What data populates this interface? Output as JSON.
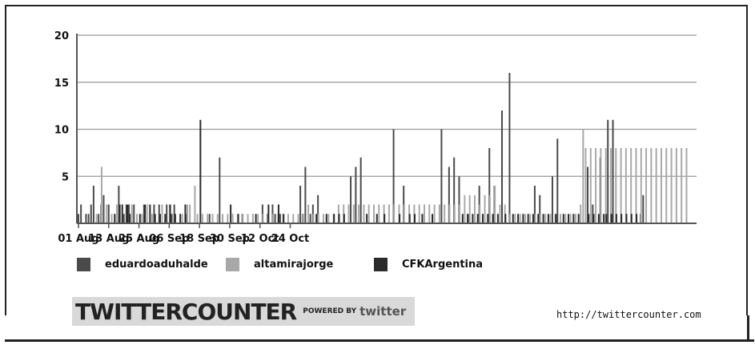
{
  "chart_data": {
    "type": "bar",
    "title": "",
    "xlabel": "",
    "ylabel": "",
    "ylim": [
      0,
      20
    ],
    "yticks": [
      20,
      15,
      10,
      5
    ],
    "xtick_labels": [
      "01 Aug",
      "13 Aug",
      "25 Aug",
      "06 Sep",
      "18 Sep",
      "30 Sep",
      "12 Oct",
      "24 Oct"
    ],
    "x_start": "01 Aug",
    "tick_interval_days": 12,
    "grid": true,
    "legend_position": "bottom",
    "series": [
      {
        "name": "eduardoaduhalde",
        "color": "#4a4a4a",
        "points": [
          [
            0,
            1
          ],
          [
            1,
            2
          ],
          [
            3,
            1
          ],
          [
            4,
            1
          ],
          [
            5,
            2
          ],
          [
            6,
            4
          ],
          [
            8,
            1
          ],
          [
            9,
            2
          ],
          [
            10,
            3
          ],
          [
            12,
            2
          ],
          [
            16,
            4
          ],
          [
            18,
            1
          ],
          [
            19,
            2
          ],
          [
            20,
            2
          ],
          [
            22,
            2
          ],
          [
            26,
            2
          ],
          [
            30,
            2
          ],
          [
            32,
            2
          ],
          [
            35,
            2
          ],
          [
            37,
            1
          ],
          [
            38,
            2
          ],
          [
            43,
            1
          ],
          [
            52,
            1
          ],
          [
            56,
            7
          ],
          [
            65,
            1
          ],
          [
            73,
            2
          ],
          [
            75,
            1
          ],
          [
            77,
            2
          ],
          [
            78,
            1
          ],
          [
            80,
            1
          ],
          [
            88,
            4
          ],
          [
            89,
            1
          ],
          [
            90,
            6
          ],
          [
            92,
            1
          ],
          [
            93,
            2
          ],
          [
            95,
            3
          ],
          [
            108,
            5
          ],
          [
            110,
            6
          ],
          [
            112,
            7
          ],
          [
            125,
            10
          ],
          [
            129,
            4
          ],
          [
            144,
            10
          ],
          [
            147,
            6
          ],
          [
            149,
            7
          ],
          [
            151,
            5
          ],
          [
            155,
            1
          ],
          [
            159,
            4
          ],
          [
            163,
            8
          ],
          [
            165,
            4
          ],
          [
            168,
            12
          ],
          [
            171,
            16
          ],
          [
            181,
            4
          ],
          [
            183,
            3
          ],
          [
            188,
            5
          ],
          [
            190,
            9
          ],
          [
            202,
            6
          ],
          [
            204,
            2
          ],
          [
            207,
            7
          ],
          [
            210,
            11
          ],
          [
            212,
            11
          ],
          [
            223,
            1
          ],
          [
            224,
            3
          ]
        ]
      },
      {
        "name": "altamirajorge",
        "color": "#a8a8a8",
        "points": [
          [
            7,
            1
          ],
          [
            9,
            6
          ],
          [
            11,
            2
          ],
          [
            13,
            1
          ],
          [
            15,
            2
          ],
          [
            21,
            2
          ],
          [
            23,
            1
          ],
          [
            25,
            1
          ],
          [
            27,
            2
          ],
          [
            29,
            1
          ],
          [
            33,
            2
          ],
          [
            36,
            2
          ],
          [
            41,
            1
          ],
          [
            43,
            2
          ],
          [
            44,
            2
          ],
          [
            46,
            4
          ],
          [
            47,
            1
          ],
          [
            49,
            1
          ],
          [
            51,
            1
          ],
          [
            53,
            1
          ],
          [
            55,
            1
          ],
          [
            57,
            1
          ],
          [
            59,
            1
          ],
          [
            61,
            1
          ],
          [
            63,
            1
          ],
          [
            65,
            1
          ],
          [
            67,
            1
          ],
          [
            69,
            1
          ],
          [
            71,
            1
          ],
          [
            73,
            1
          ],
          [
            75,
            1
          ],
          [
            77,
            1
          ],
          [
            79,
            1
          ],
          [
            81,
            1
          ],
          [
            83,
            1
          ],
          [
            85,
            1
          ],
          [
            87,
            1
          ],
          [
            89,
            1
          ],
          [
            91,
            2
          ],
          [
            93,
            1
          ],
          [
            95,
            1
          ],
          [
            97,
            1
          ],
          [
            99,
            1
          ],
          [
            101,
            1
          ],
          [
            103,
            2
          ],
          [
            105,
            2
          ],
          [
            107,
            2
          ],
          [
            109,
            2
          ],
          [
            111,
            2
          ],
          [
            113,
            2
          ],
          [
            115,
            2
          ],
          [
            117,
            2
          ],
          [
            119,
            2
          ],
          [
            121,
            2
          ],
          [
            123,
            2
          ],
          [
            125,
            2
          ],
          [
            127,
            2
          ],
          [
            129,
            2
          ],
          [
            131,
            2
          ],
          [
            133,
            2
          ],
          [
            135,
            2
          ],
          [
            137,
            2
          ],
          [
            139,
            2
          ],
          [
            141,
            2
          ],
          [
            143,
            2
          ],
          [
            145,
            2
          ],
          [
            147,
            2
          ],
          [
            149,
            2
          ],
          [
            151,
            2
          ],
          [
            153,
            3
          ],
          [
            155,
            3
          ],
          [
            157,
            3
          ],
          [
            159,
            2
          ],
          [
            161,
            3
          ],
          [
            163,
            3
          ],
          [
            165,
            4
          ],
          [
            167,
            2
          ],
          [
            169,
            2
          ],
          [
            171,
            1
          ],
          [
            173,
            1
          ],
          [
            175,
            1
          ],
          [
            177,
            1
          ],
          [
            179,
            1
          ],
          [
            181,
            1
          ],
          [
            183,
            1
          ],
          [
            185,
            1
          ],
          [
            187,
            1
          ],
          [
            189,
            1
          ],
          [
            191,
            1
          ],
          [
            193,
            1
          ],
          [
            195,
            1
          ],
          [
            197,
            1
          ],
          [
            199,
            2
          ],
          [
            200,
            10
          ],
          [
            201,
            8
          ],
          [
            203,
            8
          ],
          [
            205,
            8
          ],
          [
            207,
            8
          ],
          [
            209,
            8
          ],
          [
            211,
            8
          ],
          [
            213,
            8
          ],
          [
            215,
            8
          ],
          [
            217,
            8
          ],
          [
            219,
            8
          ],
          [
            221,
            8
          ],
          [
            223,
            8
          ],
          [
            225,
            8
          ],
          [
            227,
            8
          ],
          [
            229,
            8
          ],
          [
            231,
            8
          ],
          [
            233,
            8
          ],
          [
            235,
            8
          ],
          [
            237,
            8
          ],
          [
            239,
            8
          ],
          [
            241,
            8
          ]
        ]
      },
      {
        "name": "CFKArgentina",
        "color": "#2a2a2a",
        "points": [
          [
            14,
            1
          ],
          [
            16,
            2
          ],
          [
            17,
            2
          ],
          [
            19,
            2
          ],
          [
            20,
            1
          ],
          [
            24,
            1
          ],
          [
            26,
            2
          ],
          [
            28,
            2
          ],
          [
            30,
            1
          ],
          [
            32,
            1
          ],
          [
            34,
            1
          ],
          [
            36,
            2
          ],
          [
            38,
            1
          ],
          [
            40,
            1
          ],
          [
            42,
            2
          ],
          [
            48,
            11
          ],
          [
            60,
            2
          ],
          [
            63,
            1
          ],
          [
            70,
            1
          ],
          [
            75,
            2
          ],
          [
            79,
            2
          ],
          [
            81,
            1
          ],
          [
            94,
            1
          ],
          [
            98,
            1
          ],
          [
            101,
            1
          ],
          [
            103,
            1
          ],
          [
            105,
            1
          ],
          [
            114,
            1
          ],
          [
            118,
            1
          ],
          [
            121,
            1
          ],
          [
            127,
            1
          ],
          [
            131,
            1
          ],
          [
            133,
            1
          ],
          [
            136,
            1
          ],
          [
            140,
            1
          ],
          [
            152,
            1
          ],
          [
            154,
            1
          ],
          [
            156,
            1
          ],
          [
            158,
            1
          ],
          [
            160,
            1
          ],
          [
            162,
            1
          ],
          [
            164,
            1
          ],
          [
            166,
            1
          ],
          [
            169,
            1
          ],
          [
            172,
            1
          ],
          [
            174,
            1
          ],
          [
            176,
            1
          ],
          [
            178,
            1
          ],
          [
            180,
            1
          ],
          [
            182,
            1
          ],
          [
            184,
            1
          ],
          [
            186,
            1
          ],
          [
            189,
            1
          ],
          [
            192,
            1
          ],
          [
            194,
            1
          ],
          [
            196,
            1
          ],
          [
            198,
            1
          ],
          [
            202,
            1
          ],
          [
            204,
            1
          ],
          [
            206,
            1
          ],
          [
            208,
            1
          ],
          [
            209,
            1
          ],
          [
            211,
            1
          ],
          [
            213,
            1
          ],
          [
            215,
            1
          ],
          [
            217,
            1
          ],
          [
            219,
            1
          ],
          [
            221,
            1
          ]
        ]
      }
    ]
  },
  "legend": {
    "items": [
      {
        "label": "eduardoaduhalde",
        "color": "#4a4a4a"
      },
      {
        "label": "altamirajorge",
        "color": "#a8a8a8"
      },
      {
        "label": "CFKArgentina",
        "color": "#2a2a2a"
      }
    ]
  },
  "branding": {
    "logo_text": "TWITTERCOUNTER",
    "powered_by": "POWERED BY",
    "twitter": "twitter"
  },
  "footer": {
    "url": "http://twittercounter.com"
  }
}
